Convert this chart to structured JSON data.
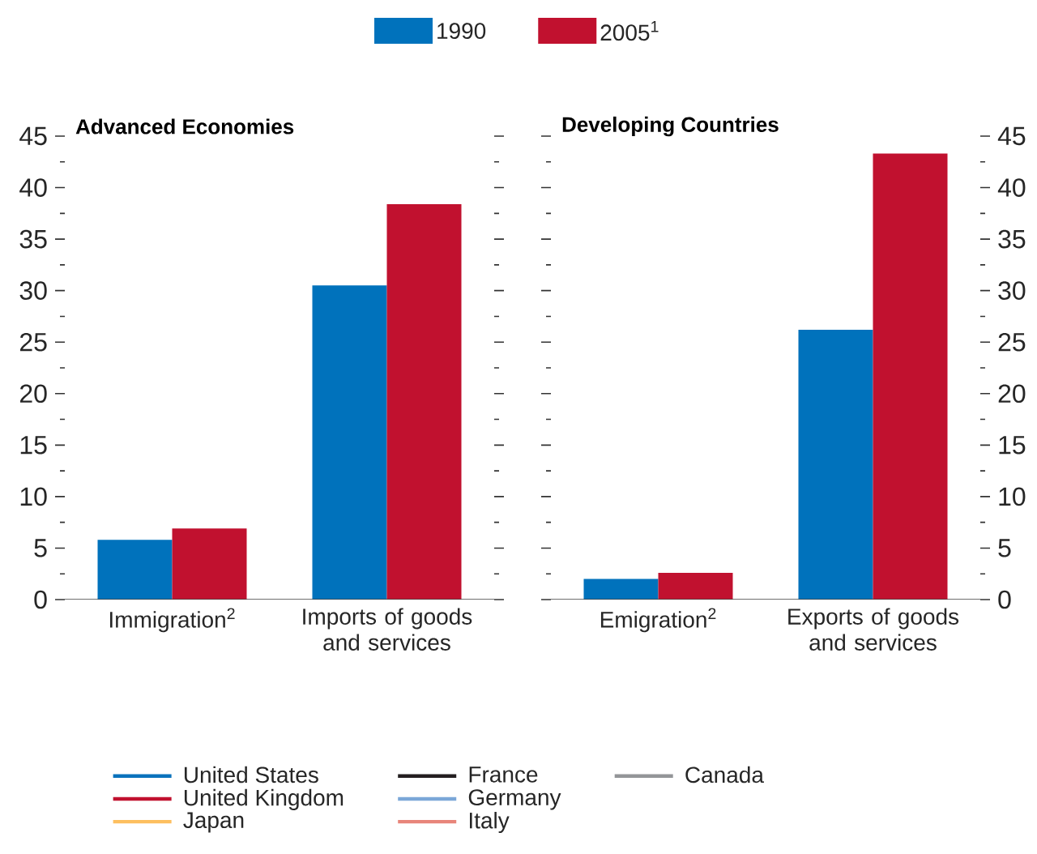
{
  "chart_data": [
    {
      "type": "bar",
      "title": "Advanced Economies",
      "categories": [
        "Immigration$^{2}$",
        "Imports of goods and services"
      ],
      "series": [
        {
          "name": "1990",
          "color": "#0072bc",
          "values": [
            5.8,
            30.5
          ]
        },
        {
          "name": "2005$^{1}$",
          "color": "#c1112f",
          "values": [
            6.9,
            38.4
          ]
        }
      ],
      "ylim": [
        0,
        45
      ],
      "yticks": [
        0,
        5,
        10,
        15,
        20,
        25,
        30,
        35,
        40,
        45
      ],
      "legend": "top"
    },
    {
      "type": "bar",
      "title": "Developing Countries",
      "categories": [
        "Emigration$^{2}$",
        "Exports of goods and services"
      ],
      "series": [
        {
          "color": "#0072bc",
          "values": [
            2.0,
            26.2
          ]
        },
        {
          "color": "#c1112f",
          "values": [
            2.6,
            43.3
          ]
        },
        {
          "type": "line",
          "name": "United States",
          "color": "#0a72bc",
          "values": [
            null,
            null
          ]
        },
        {
          "type": "line",
          "name": "United Kingdom",
          "color": "#c1112f",
          "values": [
            null,
            null
          ]
        },
        {
          "type": "line",
          "name": "Japan",
          "color": "#fdbf5f",
          "values": [
            null,
            null
          ]
        },
        {
          "type": "line",
          "name": "France",
          "color": "#231f20",
          "values": [
            null,
            null
          ]
        },
        {
          "type": "line",
          "name": "Germany",
          "color": "#7ba7d8",
          "values": [
            null,
            null
          ]
        },
        {
          "type": "line",
          "name": "Italy",
          "color": "#e8857a",
          "values": [
            null,
            null
          ]
        },
        {
          "type": "line",
          "name": "Canada",
          "color": "#939598",
          "values": [
            null,
            null
          ]
        }
      ],
      "ylim": [
        0,
        45
      ],
      "yticks": [
        0,
        5,
        10,
        15,
        20,
        25,
        30,
        35,
        40,
        45
      ],
      "legend": "bottom"
    }
  ]
}
